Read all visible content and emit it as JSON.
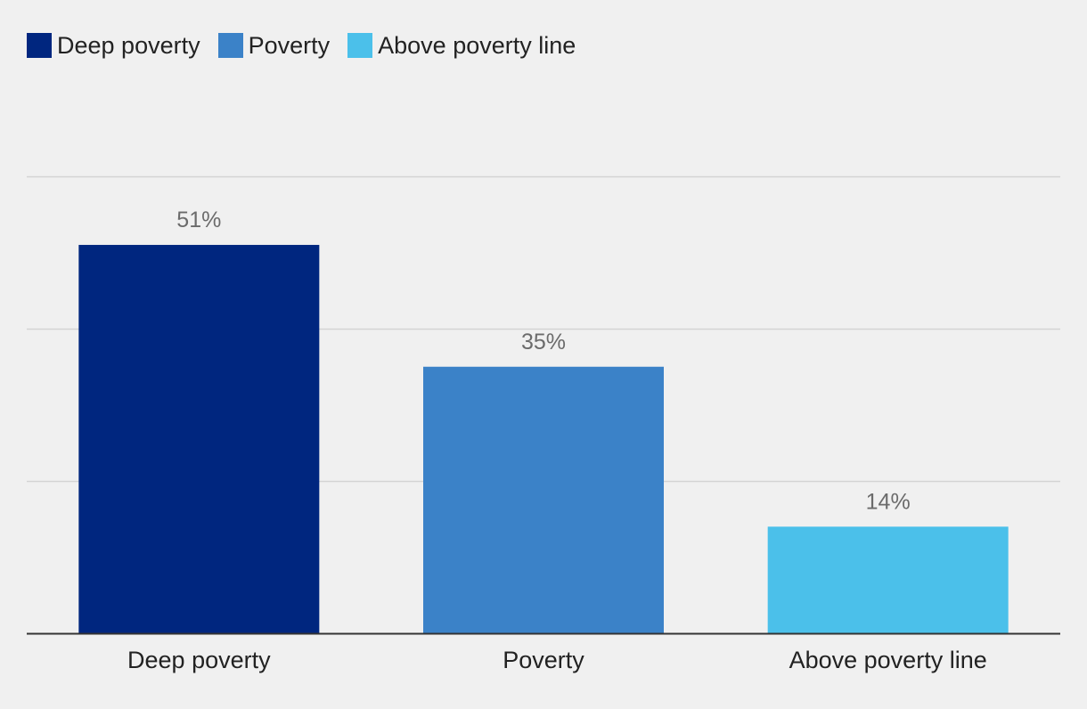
{
  "chart_data": {
    "type": "bar",
    "categories": [
      "Deep poverty",
      "Poverty",
      "Above poverty line"
    ],
    "values": [
      51,
      35,
      14
    ],
    "value_labels": [
      "51%",
      "35%",
      "14%"
    ],
    "ylim": [
      0,
      60
    ],
    "gridlines": [
      20,
      40,
      60
    ],
    "title": "",
    "xlabel": "",
    "ylabel": "",
    "legend": {
      "placement": "top-left",
      "entries": [
        {
          "label": "Deep poverty",
          "color": "#00267f"
        },
        {
          "label": "Poverty",
          "color": "#3b82c8"
        },
        {
          "label": "Above poverty line",
          "color": "#4bc0ea"
        }
      ]
    },
    "colors": [
      "#00267f",
      "#3b82c8",
      "#4bc0ea"
    ]
  }
}
